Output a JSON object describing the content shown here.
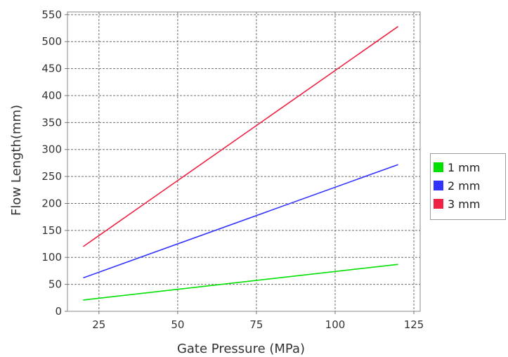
{
  "chart_data": {
    "type": "line",
    "title": "",
    "xlabel": "Gate Pressure (MPa)",
    "ylabel": "Flow Length(mm)",
    "xlim": [
      15,
      127
    ],
    "ylim": [
      0,
      555
    ],
    "x_ticks": [
      "25",
      "50",
      "75",
      "100",
      "125"
    ],
    "y_ticks": [
      "0",
      "50",
      "100",
      "150",
      "200",
      "250",
      "300",
      "350",
      "400",
      "450",
      "500",
      "550"
    ],
    "grid": true,
    "legend_position": "right",
    "x": [
      20,
      120
    ],
    "series": [
      {
        "name": "1 mm",
        "color": "#00e000",
        "values": [
          21,
          87
        ]
      },
      {
        "name": "2 mm",
        "color": "#3333ff",
        "values": [
          62,
          272
        ]
      },
      {
        "name": "3 mm",
        "color": "#ee2244",
        "values": [
          120,
          528
        ]
      }
    ]
  }
}
